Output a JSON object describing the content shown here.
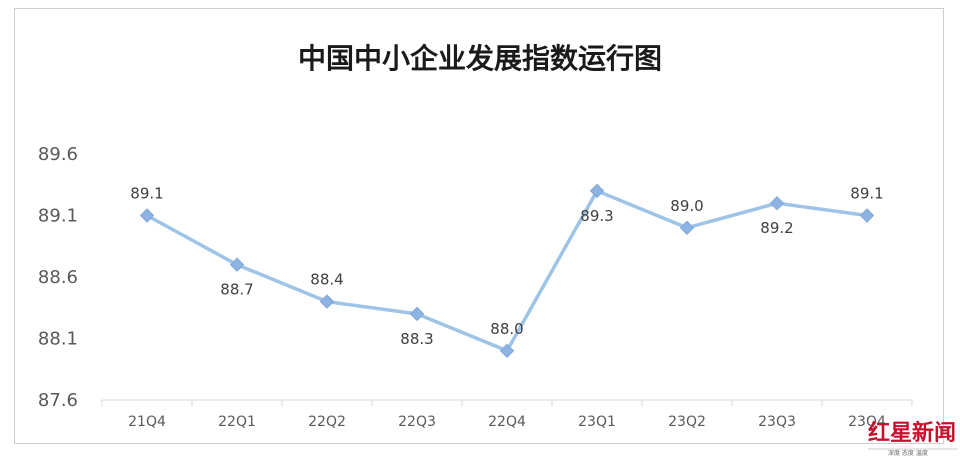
{
  "chart_data": {
    "type": "line",
    "title": "中国中小企业发展指数运行图",
    "xlabel": "",
    "ylabel": "",
    "categories": [
      "21Q4",
      "22Q1",
      "22Q2",
      "22Q3",
      "22Q4",
      "23Q1",
      "23Q2",
      "23Q3",
      "23Q4"
    ],
    "series": [
      {
        "values": [
          89.1,
          88.7,
          88.4,
          88.3,
          88.0,
          89.3,
          89.0,
          89.2,
          89.1
        ],
        "color": "#9dc3e6",
        "marker_color": "#8db3e2",
        "marker": "diamond"
      }
    ],
    "data_labels": [
      "89.1",
      "88.7",
      "88.4",
      "88.3",
      "88.0",
      "89.3",
      "89.0",
      "89.2",
      "89.1"
    ],
    "label_positions": [
      "above",
      "below",
      "above",
      "below",
      "above",
      "below",
      "above",
      "below",
      "above"
    ],
    "ylim": [
      87.6,
      89.6
    ],
    "yticks": [
      "87.6",
      "88.1",
      "88.6",
      "89.1",
      "89.6"
    ],
    "grid": false,
    "legend": "none"
  },
  "watermark": {
    "main": "红星新闻",
    "sub": "深度 态度 温度"
  }
}
